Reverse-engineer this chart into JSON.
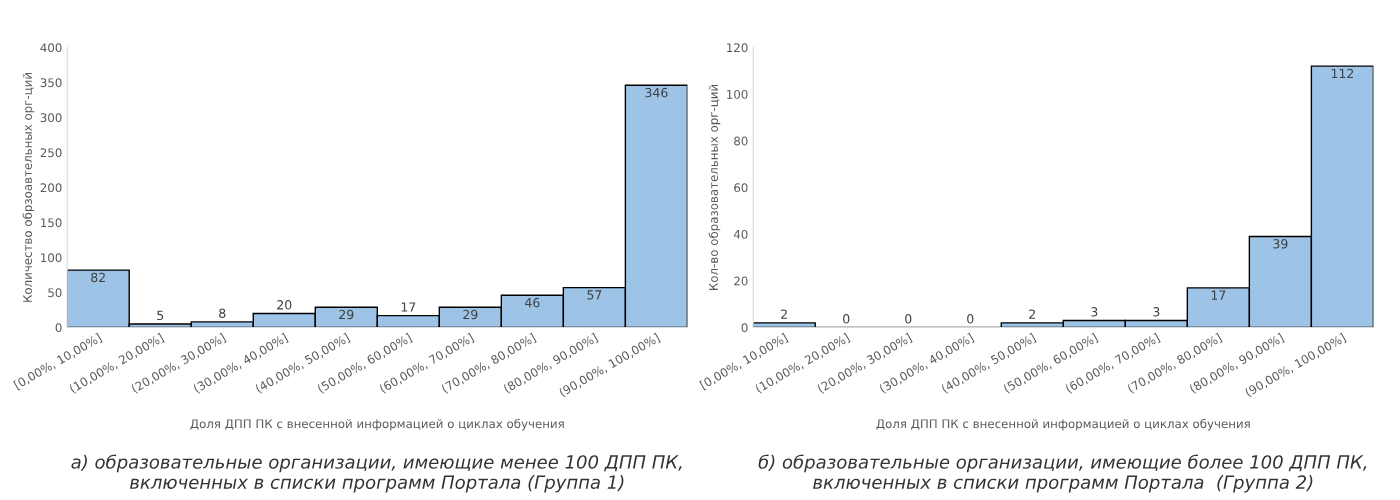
{
  "chart_data": [
    {
      "type": "bar",
      "categories": [
        "[0,00%, 10,00%]",
        "(10,00%, 20,00%]",
        "(20,00%, 30,00%]",
        "(30,00%, 40,00%]",
        "(40,00%, 50,00%]",
        "(50,00%, 60,00%]",
        "(60,00%, 70,00%]",
        "(70,00%, 80,00%]",
        "(80,00%, 90,00%]",
        "(90,00%, 100,00%]"
      ],
      "values": [
        82,
        5,
        8,
        20,
        29,
        17,
        29,
        46,
        57,
        346
      ],
      "color": "#9dc3e6",
      "xlabel": "Доля ДПП ПК с внесенной информацией о циклах обучения",
      "ylabel": "Количество обрзоавтельных орг-ций",
      "ylim": [
        0,
        400
      ],
      "yticks": [
        0,
        50,
        100,
        150,
        200,
        250,
        300,
        350,
        400
      ],
      "grid": false,
      "data_labels": true,
      "annotations": [
        "а) образовательные организации, имеющие менее 100 ДПП ПК,\nвключенных в списки программ Портала (Группа 1)"
      ]
    },
    {
      "type": "bar",
      "categories": [
        "[0,00%, 10,00%]",
        "(10,00%, 20,00%]",
        "(20,00%, 30,00%]",
        "(30,00%, 40,00%]",
        "(40,00%, 50,00%]",
        "(50,00%, 60,00%]",
        "(60,00%, 70,00%]",
        "(70,00%, 80,00%]",
        "(80,00%, 90,00%]",
        "(90,00%, 100,00%]"
      ],
      "values": [
        2,
        0,
        0,
        0,
        2,
        3,
        3,
        17,
        39,
        112
      ],
      "color": "#9dc3e6",
      "xlabel": "Доля ДПП ПК с внесенной информацией о циклах обучения",
      "ylabel": "Кол-во образовательных орг-ций",
      "ylim": [
        0,
        120
      ],
      "yticks": [
        0,
        20,
        40,
        60,
        80,
        100,
        120
      ],
      "grid": false,
      "data_labels": true,
      "annotations": [
        "б) образовательные организации, имеющие более 100 ДПП ПК,\nвключенных в списки программ Портала  (Группа 2)"
      ]
    }
  ]
}
